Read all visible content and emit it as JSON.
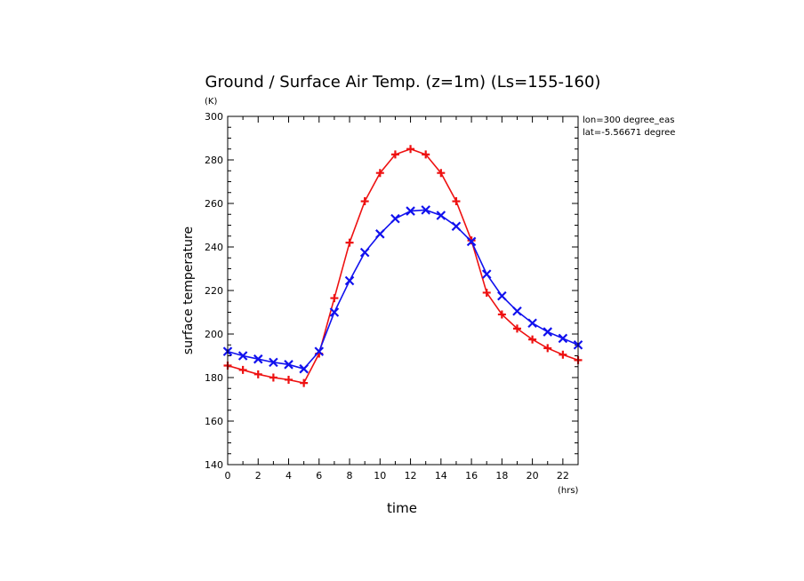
{
  "chart_data": {
    "type": "line",
    "title": "Ground / Surface Air Temp. (z=1m) (Ls=155-160)",
    "xlabel": "time",
    "ylabel": "surface temperature",
    "x_unit": "(hrs)",
    "y_unit": "(K)",
    "annotations": [
      "lon=300 degree_eas",
      "lat=-5.56671 degree"
    ],
    "xlim": [
      0,
      23
    ],
    "ylim": [
      140,
      300
    ],
    "x_ticks": [
      0,
      2,
      4,
      6,
      8,
      10,
      12,
      14,
      16,
      18,
      20,
      22
    ],
    "y_ticks": [
      140,
      160,
      180,
      200,
      220,
      240,
      260,
      280,
      300
    ],
    "grid": false,
    "x": [
      0,
      1,
      2,
      3,
      4,
      5,
      6,
      7,
      8,
      9,
      10,
      11,
      12,
      13,
      14,
      15,
      16,
      17,
      18,
      19,
      20,
      21,
      22,
      23
    ],
    "series": [
      {
        "marker": "plus",
        "color": "#ee1111",
        "values": [
          185.5,
          183.5,
          181.5,
          180,
          179,
          177.5,
          191,
          216.5,
          242,
          261,
          274,
          282.5,
          285,
          282.5,
          274,
          261,
          243,
          219,
          209,
          202.5,
          197.5,
          193.5,
          190.5,
          188
        ]
      },
      {
        "marker": "x",
        "color": "#1111ee",
        "values": [
          192,
          190,
          188.5,
          187,
          186,
          184,
          192,
          210,
          224.5,
          237.5,
          246,
          253,
          256.5,
          257,
          254.5,
          249.5,
          242.5,
          227.5,
          217.5,
          210.5,
          205,
          201,
          198,
          195
        ]
      }
    ]
  }
}
